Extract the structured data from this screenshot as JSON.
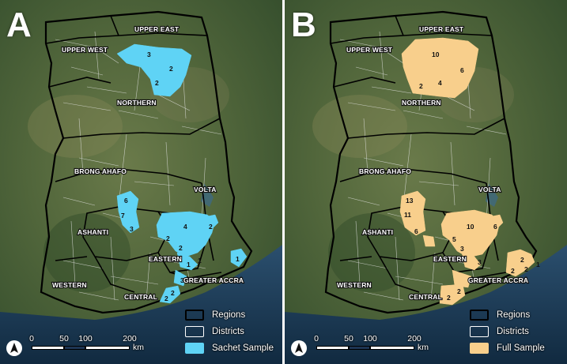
{
  "panels": [
    {
      "letter": "A",
      "sample_color": "#5fd3f5",
      "region_labels": [
        "UPPER EAST",
        "UPPER WEST",
        "NORTHERN",
        "BRONG AHAFO",
        "VOLTA",
        "ASHANTI",
        "EASTERN",
        "WESTERN",
        "CENTRAL",
        "GREATER ACCRA"
      ],
      "counts": [
        "3",
        "2",
        "2",
        "6",
        "7",
        "3",
        "4",
        "2",
        "2",
        "2",
        "1",
        "1",
        "1",
        "3",
        "2",
        "2"
      ],
      "legend": {
        "regions": "Regions",
        "districts": "Districts",
        "sample": "Sachet Sample"
      }
    },
    {
      "letter": "B",
      "sample_color": "#f8cf8c",
      "region_labels": [
        "UPPER EAST",
        "UPPER WEST",
        "NORTHERN",
        "BRONG AHAFO",
        "VOLTA",
        "ASHANTI",
        "EASTERN",
        "WESTERN",
        "CENTRAL",
        "GREATER ACCRA"
      ],
      "counts": [
        "10",
        "6",
        "2",
        "4",
        "13",
        "11",
        "6",
        "10",
        "6",
        "5",
        "3",
        "3",
        "2",
        "2",
        "2",
        "2",
        "2",
        "1"
      ],
      "legend": {
        "regions": "Regions",
        "districts": "Districts",
        "sample": "Full Sample"
      }
    }
  ],
  "scale": {
    "ticks": [
      "0",
      "50",
      "100",
      "200"
    ],
    "unit": "km"
  },
  "icons": {
    "north_arrow": "north-arrow-icon"
  }
}
